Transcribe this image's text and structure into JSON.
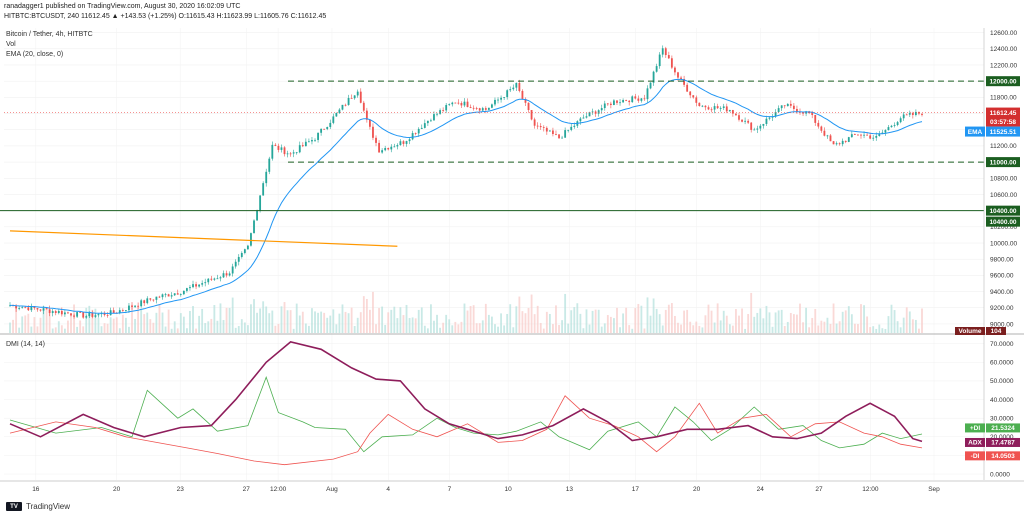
{
  "header": {
    "line1": "ranadagger1 published on TradingView.com, August 30, 2020 16:02:09 UTC",
    "line2_prefix": "HITBTC:BTCUSDT, 240",
    "ohlc": "11612.45 ▲ +143.53 (+1.25%) O:11615.43 H:11623.99 L:11605.76 C:11612.45"
  },
  "panel_labels": {
    "symbol": "Bitcoin / Tether, 4h, HITBTC",
    "vol": "Vol",
    "ema": "EMA (20, close, 0)",
    "dmi": "DMI (14, 14)"
  },
  "footer": {
    "brand": "TradingView",
    "logo": "tv-logo"
  },
  "colors": {
    "up": "#26a69a",
    "down": "#ef5350",
    "ema": "#2196f3",
    "trend": "#ff9800",
    "level_green": "#1b5e20",
    "adx": "#8e1d5b",
    "plus_di": "#4caf50",
    "minus_di": "#ef5350",
    "label_red": "#d32f2f"
  },
  "chart_data": [
    {
      "type": "candlestick",
      "title": "Bitcoin / Tether, 4h, HITBTC",
      "x_ticks": [
        "16",
        "20",
        "23",
        "27",
        "12:00",
        "Aug",
        "4",
        "7",
        "10",
        "13",
        "17",
        "20",
        "24",
        "27",
        "12:00",
        "Sep"
      ],
      "y_ticks": [
        9000,
        9200,
        9400,
        9600,
        9800,
        10000,
        10200,
        10400,
        10600,
        10800,
        11000,
        11200,
        11400,
        11600,
        11800,
        12000,
        12200,
        12400,
        12600
      ],
      "ylim": [
        8950,
        12620
      ],
      "key_points": [
        {
          "i": 0,
          "p": 9230
        },
        {
          "i": 12,
          "p": 9170
        },
        {
          "i": 25,
          "p": 9100
        },
        {
          "i": 34,
          "p": 9140
        },
        {
          "i": 48,
          "p": 9330
        },
        {
          "i": 56,
          "p": 9400
        },
        {
          "i": 64,
          "p": 9520
        },
        {
          "i": 72,
          "p": 9640
        },
        {
          "i": 78,
          "p": 9950
        },
        {
          "i": 82,
          "p": 10600
        },
        {
          "i": 86,
          "p": 11200
        },
        {
          "i": 92,
          "p": 11100
        },
        {
          "i": 100,
          "p": 11300
        },
        {
          "i": 106,
          "p": 11550
        },
        {
          "i": 114,
          "p": 11900
        },
        {
          "i": 117,
          "p": 11500
        },
        {
          "i": 121,
          "p": 11150
        },
        {
          "i": 129,
          "p": 11250
        },
        {
          "i": 138,
          "p": 11550
        },
        {
          "i": 146,
          "p": 11750
        },
        {
          "i": 156,
          "p": 11650
        },
        {
          "i": 166,
          "p": 11950
        },
        {
          "i": 172,
          "p": 11450
        },
        {
          "i": 180,
          "p": 11300
        },
        {
          "i": 188,
          "p": 11550
        },
        {
          "i": 198,
          "p": 11750
        },
        {
          "i": 208,
          "p": 11800
        },
        {
          "i": 214,
          "p": 12400
        },
        {
          "i": 219,
          "p": 12050
        },
        {
          "i": 226,
          "p": 11700
        },
        {
          "i": 236,
          "p": 11650
        },
        {
          "i": 244,
          "p": 11400
        },
        {
          "i": 254,
          "p": 11700
        },
        {
          "i": 262,
          "p": 11600
        },
        {
          "i": 270,
          "p": 11200
        },
        {
          "i": 278,
          "p": 11350
        },
        {
          "i": 284,
          "p": 11300
        },
        {
          "i": 292,
          "p": 11550
        },
        {
          "i": 299,
          "p": 11612
        }
      ],
      "ema": {
        "name": "EMA",
        "last": 11525.51
      },
      "levels": [
        {
          "value": 12000,
          "label": "12000.00",
          "style": "dashed"
        },
        {
          "value": 11000,
          "label": "11000.00",
          "style": "dashed"
        },
        {
          "value": 10400,
          "label": "10400.00",
          "style": "solid"
        }
      ],
      "trendline": {
        "from": {
          "i": 0,
          "p": 10150
        },
        "to": {
          "i": 127,
          "p": 9960
        }
      },
      "price_tag": {
        "value": "11612.45",
        "countdown": "03:57:58"
      },
      "ema_tag": {
        "name": "EMA",
        "value": "11525.51"
      },
      "volume_tag": {
        "name": "Volume",
        "value": "104"
      }
    },
    {
      "type": "line",
      "title": "DMI (14, 14)",
      "y_ticks": [
        "70.0000",
        "60.0000",
        "50.0000",
        "40.0000",
        "30.0000",
        "20.0000",
        "10.0000",
        "0.0000"
      ],
      "ylim": [
        0,
        72
      ],
      "series": [
        {
          "name": "+DI",
          "last": "21.5324",
          "points": [
            [
              0,
              29
            ],
            [
              15,
              22
            ],
            [
              30,
              25
            ],
            [
              40,
              20
            ],
            [
              45,
              45
            ],
            [
              55,
              30
            ],
            [
              60,
              35
            ],
            [
              68,
              23
            ],
            [
              78,
              26
            ],
            [
              84,
              52
            ],
            [
              88,
              33
            ],
            [
              96,
              28
            ],
            [
              100,
              25
            ],
            [
              110,
              24
            ],
            [
              116,
              12
            ],
            [
              122,
              20
            ],
            [
              132,
              21
            ],
            [
              140,
              30
            ],
            [
              146,
              25
            ],
            [
              152,
              22
            ],
            [
              160,
              21
            ],
            [
              166,
              23
            ],
            [
              174,
              28
            ],
            [
              180,
              20
            ],
            [
              190,
              13
            ],
            [
              196,
              23
            ],
            [
              206,
              28
            ],
            [
              212,
              20
            ],
            [
              218,
              36
            ],
            [
              224,
              28
            ],
            [
              230,
              18
            ],
            [
              236,
              24
            ],
            [
              244,
              36
            ],
            [
              252,
              24
            ],
            [
              260,
              26
            ],
            [
              266,
              18
            ],
            [
              272,
              14
            ],
            [
              280,
              16
            ],
            [
              286,
              22
            ],
            [
              292,
              19
            ],
            [
              299,
              21.5
            ]
          ]
        },
        {
          "name": "-DI",
          "last": "14.0503",
          "points": [
            [
              0,
              22
            ],
            [
              15,
              28
            ],
            [
              28,
              25
            ],
            [
              38,
              20
            ],
            [
              48,
              17
            ],
            [
              58,
              14
            ],
            [
              68,
              11
            ],
            [
              80,
              7
            ],
            [
              90,
              5
            ],
            [
              106,
              8
            ],
            [
              114,
              12
            ],
            [
              118,
              22
            ],
            [
              124,
              32
            ],
            [
              132,
              24
            ],
            [
              140,
              20
            ],
            [
              150,
              27
            ],
            [
              160,
              17
            ],
            [
              168,
              18
            ],
            [
              176,
              24
            ],
            [
              182,
              42
            ],
            [
              190,
              30
            ],
            [
              198,
              26
            ],
            [
              206,
              20
            ],
            [
              212,
              12
            ],
            [
              218,
              20
            ],
            [
              226,
              38
            ],
            [
              232,
              22
            ],
            [
              240,
              30
            ],
            [
              248,
              32
            ],
            [
              256,
              20
            ],
            [
              264,
              27
            ],
            [
              272,
              28
            ],
            [
              280,
              22
            ],
            [
              286,
              20
            ],
            [
              292,
              16
            ],
            [
              299,
              14
            ]
          ]
        },
        {
          "name": "ADX",
          "last": "17.4787",
          "points": [
            [
              0,
              27
            ],
            [
              10,
              20
            ],
            [
              24,
              32
            ],
            [
              34,
              25
            ],
            [
              44,
              20
            ],
            [
              56,
              25
            ],
            [
              66,
              26
            ],
            [
              74,
              40
            ],
            [
              84,
              60
            ],
            [
              92,
              71
            ],
            [
              102,
              67
            ],
            [
              112,
              57
            ],
            [
              120,
              51
            ],
            [
              128,
              50
            ],
            [
              136,
              35
            ],
            [
              144,
              27
            ],
            [
              150,
              24
            ],
            [
              160,
              19
            ],
            [
              168,
              21
            ],
            [
              178,
              26
            ],
            [
              188,
              35
            ],
            [
              196,
              28
            ],
            [
              204,
              18
            ],
            [
              212,
              20
            ],
            [
              222,
              24
            ],
            [
              232,
              24
            ],
            [
              242,
              26
            ],
            [
              250,
              20
            ],
            [
              258,
              19
            ],
            [
              266,
              22
            ],
            [
              274,
              31
            ],
            [
              282,
              38
            ],
            [
              290,
              31
            ],
            [
              296,
              19
            ],
            [
              299,
              17.5
            ]
          ]
        }
      ]
    }
  ]
}
